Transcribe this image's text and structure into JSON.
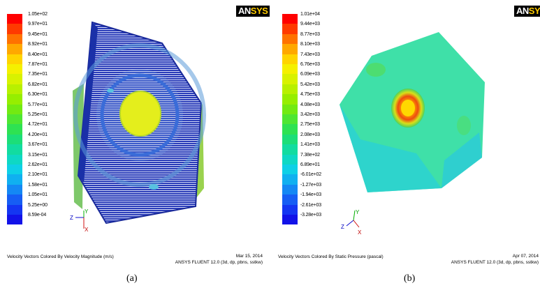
{
  "panel_a": {
    "logo_main": "AN",
    "logo_accent": "SYS",
    "legend_labels": [
      "1.05e+02",
      "9.97e+01",
      "9.45e+01",
      "8.92e+01",
      "8.40e+01",
      "7.87e+01",
      "7.35e+01",
      "6.82e+01",
      "6.30e+01",
      "5.77e+01",
      "5.25e+01",
      "4.72e+01",
      "4.20e+01",
      "3.67e+01",
      "3.15e+01",
      "2.62e+01",
      "2.10e+01",
      "1.58e+01",
      "1.05e+01",
      "5.25e+00",
      "8.59e-04"
    ],
    "legend_colors": [
      "#ff0000",
      "#ff3a00",
      "#ff7200",
      "#ffa800",
      "#ffd400",
      "#f5f000",
      "#d8f200",
      "#b8f000",
      "#96ee00",
      "#72ea12",
      "#4ee632",
      "#2ee252",
      "#1cde78",
      "#12dca0",
      "#0ed8c4",
      "#0ed0e6",
      "#10b0f0",
      "#1488f4",
      "#165ef4",
      "#1436f2",
      "#1212e8"
    ],
    "axis_y": "Y",
    "axis_z": "Z",
    "axis_x": "X",
    "footer_title": "Velocity Vectors Colored By Velocity Magnitude (m/s)",
    "footer_date": "Mar 15, 2014",
    "footer_solver": "ANSYS FLUENT 12.0 (3d, dp, pbns, sstkw)",
    "caption": "(a)"
  },
  "panel_b": {
    "logo_main": "AN",
    "logo_accent": "SYS",
    "legend_labels": [
      "1.01e+04",
      "9.44e+03",
      "8.77e+03",
      "8.10e+03",
      "7.43e+03",
      "6.76e+03",
      "6.09e+03",
      "5.42e+03",
      "4.75e+03",
      "4.08e+03",
      "3.42e+03",
      "2.75e+03",
      "2.08e+03",
      "1.41e+03",
      "7.38e+02",
      "6.89e+01",
      "-6.01e+02",
      "-1.27e+03",
      "-1.94e+03",
      "-2.61e+03",
      "-3.28e+03"
    ],
    "legend_colors": [
      "#ff0000",
      "#ff3a00",
      "#ff7200",
      "#ffa800",
      "#ffd400",
      "#f5f000",
      "#d8f200",
      "#b8f000",
      "#96ee00",
      "#72ea12",
      "#4ee632",
      "#2ee252",
      "#1cde78",
      "#12dca0",
      "#0ed8c4",
      "#0ed0e6",
      "#10b0f0",
      "#1488f4",
      "#165ef4",
      "#1436f2",
      "#1212e8"
    ],
    "axis_y": "Y",
    "axis_z": "Z",
    "axis_x": "X",
    "footer_title": "Velocity Vectors Colored By Static Pressure (pascal)",
    "footer_date": "Apr 07, 2014",
    "footer_solver": "ANSYS FLUENT 12.0 (3d, dp, pbns, sstkw)",
    "caption": "(b)"
  }
}
